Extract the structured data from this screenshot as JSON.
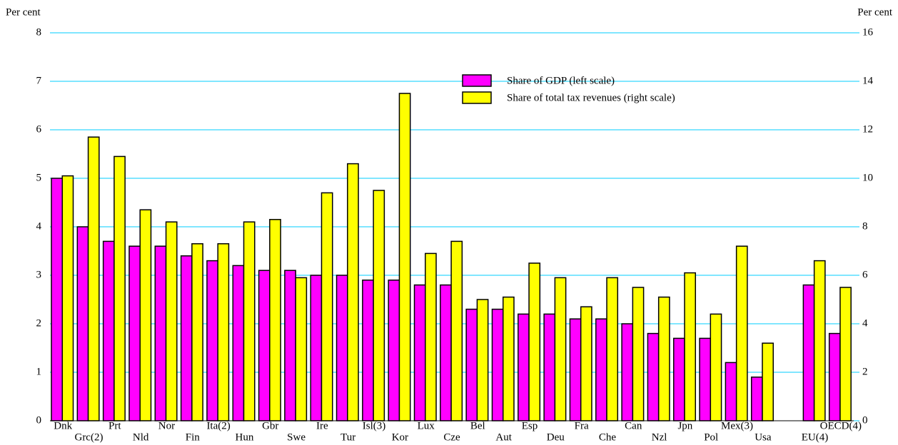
{
  "chart_data": {
    "type": "bar",
    "y_label": "Per cent",
    "y2_label": "Per cent",
    "categories": [
      "Dnk",
      "Grc(2)",
      "Prt",
      "Nld",
      "Nor",
      "Fin",
      "Ita(2)",
      "Hun",
      "Gbr",
      "Swe",
      "Ire",
      "Tur",
      "Isl(3)",
      "Kor",
      "Lux",
      "Cze",
      "Bel",
      "Aut",
      "Esp",
      "Deu",
      "Fra",
      "Che",
      "Can",
      "Nzl",
      "Jpn",
      "Pol",
      "Mex(3)",
      "Usa",
      null,
      "EU(4)",
      "OECD(4)"
    ],
    "series": [
      {
        "name": "Share of GDP (left scale)",
        "color": "#ff00ff",
        "values": [
          5.0,
          4.0,
          3.7,
          3.6,
          3.6,
          3.4,
          3.3,
          3.2,
          3.1,
          3.1,
          3.0,
          3.0,
          2.9,
          2.9,
          2.8,
          2.8,
          2.3,
          2.3,
          2.2,
          2.2,
          2.1,
          2.1,
          2.0,
          1.8,
          1.7,
          1.7,
          1.2,
          0.9,
          null,
          2.8,
          1.8
        ]
      },
      {
        "name": "Share of total tax revenues (right scale)",
        "color": "#ffff00",
        "axis": "y2",
        "values": [
          10.1,
          11.7,
          10.9,
          8.7,
          8.2,
          7.3,
          7.3,
          8.2,
          8.3,
          5.9,
          9.4,
          10.6,
          9.5,
          13.5,
          6.9,
          7.4,
          5.0,
          5.1,
          6.5,
          5.9,
          4.7,
          5.9,
          5.5,
          5.1,
          6.1,
          4.4,
          7.2,
          3.2,
          null,
          6.6,
          5.5
        ]
      }
    ],
    "ylim": [
      0,
      8
    ],
    "yticks": [
      0,
      1,
      2,
      3,
      4,
      5,
      6,
      7,
      8
    ],
    "y2lim": [
      0,
      16
    ],
    "y2ticks": [
      0,
      2,
      4,
      6,
      8,
      10,
      12,
      14,
      16
    ],
    "grid": true,
    "grid_color": "#00ccff"
  }
}
